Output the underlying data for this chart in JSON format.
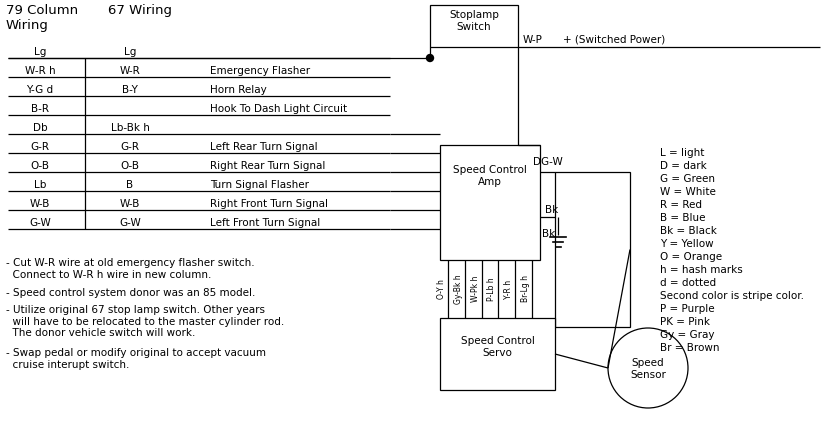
{
  "bg_color": "#ffffff",
  "header_col1": "79 Column\nWiring",
  "header_col2": "67 Wiring",
  "wires": [
    {
      "col1": "Lg",
      "col2": "Lg",
      "label": ""
    },
    {
      "col1": "W-R h",
      "col2": "W-R",
      "label": "Emergency Flasher"
    },
    {
      "col1": "Y-G d",
      "col2": "B-Y",
      "label": "Horn Relay"
    },
    {
      "col1": "B-R",
      "col2": "",
      "label": "Hook To Dash Light Circuit"
    },
    {
      "col1": "Db",
      "col2": "Lb-Bk h",
      "label": ""
    },
    {
      "col1": "G-R",
      "col2": "G-R",
      "label": "Left Rear Turn Signal"
    },
    {
      "col1": "O-B",
      "col2": "O-B",
      "label": "Right Rear Turn Signal"
    },
    {
      "col1": "Lb",
      "col2": "B",
      "label": "Turn Signal Flasher"
    },
    {
      "col1": "W-B",
      "col2": "W-B",
      "label": "Right Front Turn Signal"
    },
    {
      "col1": "G-W",
      "col2": "G-W",
      "label": "Left Front Turn Signal"
    }
  ],
  "servo_wires": [
    "O-Y h",
    "Gy-Bk h",
    "W-Pk h",
    "P-Lb h",
    "Y-R h",
    "Br-Lg h"
  ],
  "notes": [
    "- Cut W-R wire at old emergency flasher switch.\n  Connect to W-R h wire in new column.",
    "- Speed control system donor was an 85 model.",
    "- Utilize original 67 stop lamp switch. Other years\n  will have to be relocated to the master cylinder rod.\n  The donor vehicle switch will work.",
    "- Swap pedal or modify original to accept vacuum\n  cruise interupt switch."
  ],
  "legend": [
    "L = light",
    "D = dark",
    "G = Green",
    "W = White",
    "R = Red",
    "B = Blue",
    "Bk = Black",
    "Y = Yellow",
    "O = Orange",
    "h = hash marks",
    "d = dotted",
    "Second color is stripe color.",
    "P = Purple",
    "PK = Pink",
    "Gy = Gray",
    "Br = Brown"
  ],
  "font_size": 7.5
}
